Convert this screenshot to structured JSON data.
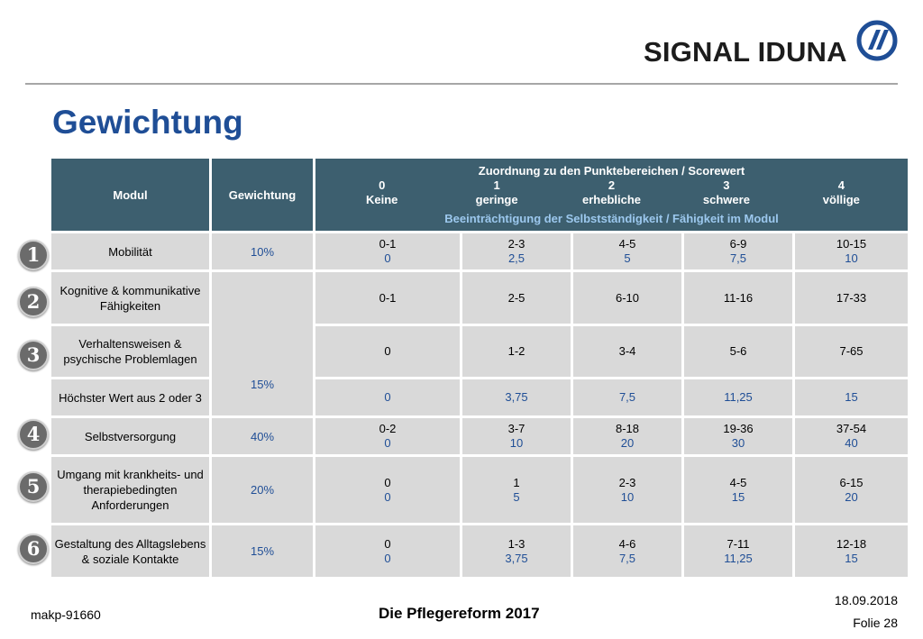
{
  "brand": {
    "name": "SIGNAL IDUNA",
    "color": "#1c1c1c"
  },
  "title": "Gewichtung",
  "table": {
    "headers": {
      "modul": "Modul",
      "gewichtung": "Gewichtung",
      "zuordnung": "Zuordnung zu den Punktebereichen / Scorewert",
      "scores": [
        {
          "num": "0",
          "label": "Keine"
        },
        {
          "num": "1",
          "label": "geringe"
        },
        {
          "num": "2",
          "label": "erhebliche"
        },
        {
          "num": "3",
          "label": "schwere"
        },
        {
          "num": "4",
          "label": "völlige"
        }
      ],
      "subheader": "Beeinträchtigung der Selbstständigkeit / Fähigkeit im Modul"
    },
    "rows": [
      {
        "module": "Mobilität",
        "weight": "10%",
        "cells": [
          [
            "0-1",
            "0"
          ],
          [
            "2-3",
            "2,5"
          ],
          [
            "4-5",
            "5"
          ],
          [
            "6-9",
            "7,5"
          ],
          [
            "10-15",
            "10"
          ]
        ]
      },
      {
        "module": "Kognitive & kommunikative Fähigkeiten",
        "weight": "",
        "cells": [
          [
            "0-1"
          ],
          [
            "2-5"
          ],
          [
            "6-10"
          ],
          [
            "11-16"
          ],
          [
            "17-33"
          ]
        ]
      },
      {
        "module": "Verhaltensweisen & psychische Problemlagen",
        "weight": "",
        "cells": [
          [
            "0"
          ],
          [
            "1-2"
          ],
          [
            "3-4"
          ],
          [
            "5-6"
          ],
          [
            "7-65"
          ]
        ]
      },
      {
        "module": "Höchster Wert aus 2 oder 3",
        "weight": "15%",
        "cells": [
          [
            "",
            "0"
          ],
          [
            "",
            "3,75"
          ],
          [
            "",
            "7,5"
          ],
          [
            "",
            "11,25"
          ],
          [
            "",
            "15"
          ]
        ]
      },
      {
        "module": "Selbstversorgung",
        "weight": "40%",
        "cells": [
          [
            "0-2",
            "0"
          ],
          [
            "3-7",
            "10"
          ],
          [
            "8-18",
            "20"
          ],
          [
            "19-36",
            "30"
          ],
          [
            "37-54",
            "40"
          ]
        ]
      },
      {
        "module": "Umgang mit krankheits- und therapiebedingten Anforderungen",
        "weight": "20%",
        "cells": [
          [
            "0",
            "0"
          ],
          [
            "1",
            "5"
          ],
          [
            "2-3",
            "10"
          ],
          [
            "4-5",
            "15"
          ],
          [
            "6-15",
            "20"
          ]
        ]
      },
      {
        "module": "Gestaltung des Alltagslebens & soziale Kontakte",
        "weight": "15%",
        "cells": [
          [
            "0",
            "0"
          ],
          [
            "1-3",
            "3,75"
          ],
          [
            "4-6",
            "7,5"
          ],
          [
            "7-11",
            "11,25"
          ],
          [
            "12-18",
            "15"
          ]
        ]
      }
    ]
  },
  "badges": [
    "1",
    "2",
    "3",
    "4",
    "5",
    "6"
  ],
  "footer": {
    "code": "makp-91660",
    "center": "Die Pflegereform 2017",
    "date": "18.09.2018",
    "page": "Folie 28"
  },
  "colors": {
    "header_bg": "#3d5f6f",
    "cell_bg": "#d9d9d9",
    "accent_blue": "#1f4e96",
    "subheader_blue": "#9cc8ee",
    "badge": "#6b6b6b"
  },
  "icons": {
    "logo": "signal-iduna-logo"
  }
}
